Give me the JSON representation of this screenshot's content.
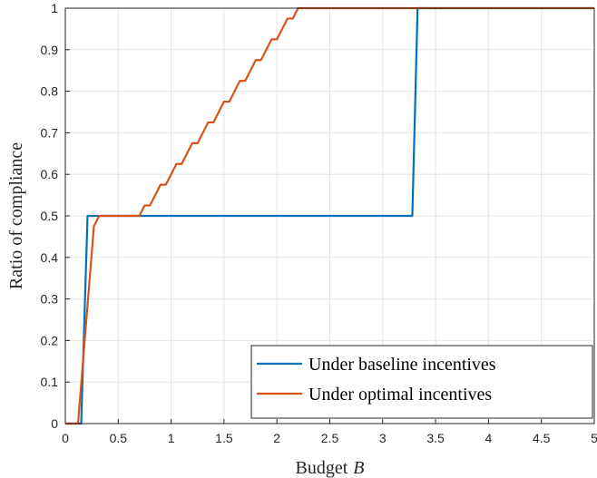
{
  "chart_data": {
    "type": "line",
    "xlabel": "Budget",
    "xlabel_symbol": "B",
    "ylabel": "Ratio of compliance",
    "xlim": [
      0,
      5
    ],
    "ylim": [
      0,
      1
    ],
    "xticks": [
      "0",
      "0.5",
      "1",
      "1.5",
      "2",
      "2.5",
      "3",
      "3.5",
      "4",
      "4.5",
      "5"
    ],
    "yticks": [
      "0",
      "0.1",
      "0.2",
      "0.3",
      "0.4",
      "0.5",
      "0.6",
      "0.7",
      "0.8",
      "0.9",
      "1"
    ],
    "grid": true,
    "legend_position": "bottom-right",
    "colors": {
      "baseline": "#0072BD",
      "optimal": "#D95319",
      "grid": "#e6e6e6",
      "axis": "#262626"
    },
    "series": [
      {
        "name": "Under baseline incentives",
        "x": [
          0,
          0.15,
          0.21,
          3.28,
          3.33,
          5
        ],
        "y": [
          0,
          0,
          0.5,
          0.5,
          1,
          1
        ]
      },
      {
        "name": "Under optimal incentives",
        "x": [
          0,
          0.12,
          0.27,
          0.32,
          0.7,
          0.75,
          0.8,
          0.9,
          0.95,
          1.0,
          1.05,
          1.1,
          1.15,
          1.2,
          1.25,
          1.3,
          1.35,
          1.4,
          1.45,
          1.5,
          1.55,
          1.6,
          1.65,
          1.7,
          1.75,
          1.8,
          1.85,
          1.9,
          1.95,
          2.0,
          2.05,
          2.1,
          2.15,
          2.2,
          2.23,
          5
        ],
        "y": [
          0,
          0,
          0.475,
          0.5,
          0.5,
          0.525,
          0.525,
          0.575,
          0.575,
          0.6,
          0.625,
          0.625,
          0.65,
          0.675,
          0.675,
          0.7,
          0.725,
          0.725,
          0.75,
          0.775,
          0.775,
          0.8,
          0.825,
          0.825,
          0.85,
          0.875,
          0.875,
          0.9,
          0.925,
          0.925,
          0.95,
          0.975,
          0.975,
          1.0,
          1.0,
          1.0
        ]
      }
    ]
  }
}
